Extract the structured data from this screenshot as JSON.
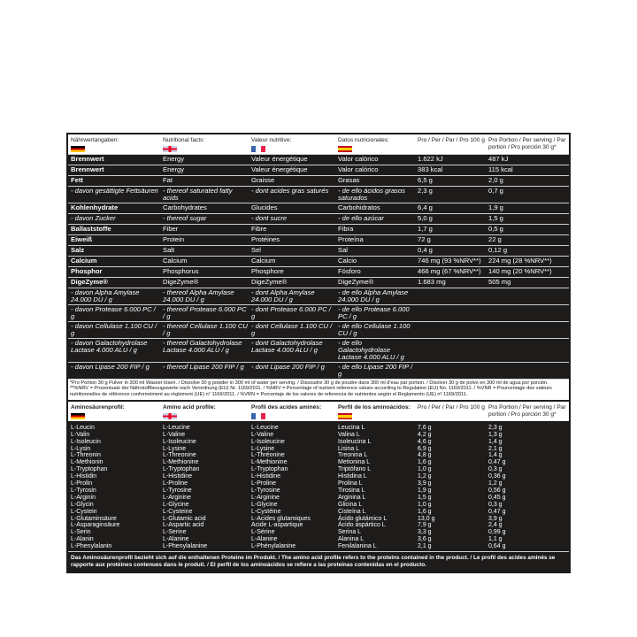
{
  "nutrition": {
    "headers": [
      "Nährwertangaben:",
      "Nutritional facts:",
      "Valeur nutritive:",
      "Datos nutricionales:",
      "Pro / Per / Par / Pro 100 g",
      "Pro Portion / Per serving / Par portion / Pro porción 30 g*"
    ],
    "flags": [
      "germany-flag",
      "uk-flag",
      "france-flag",
      "spain-flag"
    ],
    "rows": [
      {
        "style": "b",
        "cells": [
          "Brennwert",
          "Energy",
          "Valeur énergétique",
          "Valor calórico",
          "1.622 kJ",
          "487 kJ"
        ]
      },
      {
        "style": "b",
        "cells": [
          "Brennwert",
          "Energy",
          "Valeur énergétique",
          "Valor calórico",
          "383 kcal",
          "115 kcal"
        ]
      },
      {
        "style": "b",
        "cells": [
          "Fett",
          "Fat",
          "Graisse",
          "Grasas",
          "6,5 g",
          "2,0 g"
        ]
      },
      {
        "style": "i",
        "cells": [
          "- davon gesättigte Fettsäuren",
          "- thereof saturated fatty acids",
          "- dont acides gras saturés",
          "- de ello ácidos grasos saturados",
          "2,3 g",
          "0,7 g"
        ]
      },
      {
        "style": "b",
        "cells": [
          "Kohlenhydrate",
          "Carbohydrates",
          "Glucides",
          "Carbohidratos",
          "6,4 g",
          "1,9 g"
        ]
      },
      {
        "style": "i",
        "cells": [
          "- davon Zucker",
          "- thereof sugar",
          "- dont sucre",
          "- de ello azúcar",
          "5,0 g",
          "1,5 g"
        ]
      },
      {
        "style": "b",
        "cells": [
          "Ballaststoffe",
          "Fiber",
          "Fibre",
          "Fibra",
          "1,7 g",
          "0,5 g"
        ]
      },
      {
        "style": "b",
        "cells": [
          "Eiweiß",
          "Protein",
          "Protéines",
          "Proteína",
          "72 g",
          "22 g"
        ]
      },
      {
        "style": "b",
        "cells": [
          "Salz",
          "Salt",
          "Sel",
          "Sal",
          "0,4 g",
          "0,12 g"
        ]
      },
      {
        "style": "b",
        "cells": [
          "Calcium",
          "Calcium",
          "Calcium",
          "Calcio",
          "746 mg (93 %NRV**)",
          "224 mg (28 %NRV**)"
        ]
      },
      {
        "style": "b",
        "cells": [
          "Phosphor",
          "Phosphorus",
          "Phosphore",
          "Fósforo",
          "466 mg (67 %NRV**)",
          "140 mg (20 %NRV**)"
        ]
      },
      {
        "style": "b",
        "cells": [
          "DigeZyme®",
          "DigeZyme®",
          "DigeZyme®",
          "DigeZyme®",
          "1.683 mg",
          "505 mg"
        ]
      },
      {
        "style": "i",
        "cells": [
          "- davon Alpha Amylase 24.000 DU / g",
          "- thereof Alpha Amylase 24.000 DU / g",
          "- dont Alpha Amylase 24.000 DU / g",
          "- de ello Alpha Amylase 24.000 DU / g",
          "",
          ""
        ]
      },
      {
        "style": "i",
        "cells": [
          "- davon Protease 6.000 PC / g",
          "- thereof Protease 6.000 PC / g",
          "- dont Protease 6.000 PC / g",
          "- de ello Protease 6.000 PC / g",
          "",
          ""
        ]
      },
      {
        "style": "i",
        "cells": [
          "- davon Cellulase 1.100 CU / g",
          "- thereof Cellulase 1.100 CU / g",
          "- dont Cellulase 1.100 CU / g",
          "- de ello Cellulase 1.100 CU / g",
          "",
          ""
        ]
      },
      {
        "style": "i",
        "cells": [
          "- davon Galactohydrolase Lactase 4.000 ALU / g",
          "- thereof Galactohydrolase Lactase 4.000 ALU / g",
          "- dont Galactohydrolase Lactase 4.000 ALU / g",
          "- de ello Galactohydrolase Lactase 4.000 ALU / g",
          "",
          ""
        ]
      },
      {
        "style": "i",
        "cells": [
          "- davon Lipase 200 FIP / g",
          "- thereof Lipase 200 FIP / g",
          "- dont Lipase 200 FIP / g",
          "- de ello Lipase 200 FIP / g",
          "",
          ""
        ]
      }
    ],
    "footnote": "*Pro Portion 30 g Pulver in 300 ml Wasser lösen. / Dissolve 30 g powder in 300 ml of water per serving. / Dissoudre 30 g de poudre dans 300 ml d'eau par portion. / Disolver 30 g de polvo en 300 ml de agua por porción. **%NRV = Prozentsatz der Nährstoffbezugswerte nach Verordnung (EU) Nr. 1169/2011. / %NRV = Percentage of nutrient reference values according to Regulation (EU) No. 1169/2011. / %VNR = Pourcentage des valeurs nutritionnelles de référence conformément au règlement (UE) n° 1169/2011. / %VRN = Porcentaje de los valores de referencia de nutrientes según el Reglamento (UE) nº 1169/2011."
  },
  "amino": {
    "headers": [
      "Aminosäurenprofil:",
      "Amino acid profile:",
      "Profil des acides aminés:",
      "Perfil de los aminoácidos:",
      "Pro / Per / Par / Pro 100 g",
      "Pro Portion / Per serving / Par portion / Pro porción 30 g*"
    ],
    "rows": [
      [
        "L-Leucin",
        "L-Leucine",
        "L-Leucine",
        "Leucina L",
        "7,6 g",
        "2,3 g"
      ],
      [
        "L-Valin",
        "L-Valine",
        "L-Valine",
        "Valina L",
        "4,2 g",
        "1,3 g"
      ],
      [
        "L-Isoleucin",
        "L-Isoleucine",
        "L-Isoleucine",
        "Isoleucina L",
        "4,6 g",
        "1,4 g"
      ],
      [
        "L-Lysin",
        "L-Lysine",
        "L-Lysine",
        "Lisina L",
        "6,9 g",
        "2,1 g"
      ],
      [
        "L-Threonin",
        "L-Threonine",
        "L-Thréonine",
        "Treonina L",
        "4,8 g",
        "1,4 g"
      ],
      [
        "L-Methionin",
        "L-Methionine",
        "L-Methionine",
        "Metionina L",
        "1,6 g",
        "0,47 g"
      ],
      [
        "L-Tryptophan",
        "L-Tryptophan",
        "L-Tryptophan",
        "Triptófano L",
        "1,0 g",
        "0,3 g"
      ],
      [
        "L-Histidin",
        "L-Histidine",
        "L-Histidine",
        "Histidina L",
        "1,2 g",
        "0,36 g"
      ],
      [
        "L-Prolin",
        "L-Proline",
        "L-Proline",
        "Prolina L",
        "3,9 g",
        "1,2 g"
      ],
      [
        "L-Tyrosin",
        "L-Tyrosine",
        "L-Tyrosine",
        "Tirosina L",
        "1,9 g",
        "0,56 g"
      ],
      [
        "L-Arginin",
        "L-Arginine",
        "L-Arginine",
        "Arginina L",
        "1,5 g",
        "0,45 g"
      ],
      [
        "L-Glycin",
        "L-Glycine",
        "L-Glycine",
        "Glicina L",
        "1,0 g",
        "0,3 g"
      ],
      [
        "L-Cystein",
        "L-Cysteine",
        "L-Cystéine",
        "Cisteína L",
        "1,6 g",
        "0,47 g"
      ],
      [
        "L-Glutaminsäure",
        "L-Glutamic acid",
        "L-Acides glutamiques",
        "Ácido glutámico L",
        "13,0 g",
        "3,9 g"
      ],
      [
        "L-Asparaginsäure",
        "L-Aspartic acid",
        "Acide L-aspartique",
        "Ácido aspártico L",
        "7,9 g",
        "2,4 g"
      ],
      [
        "L-Serin",
        "L-Serine",
        "L-Sérine",
        "Serina L",
        "3,3 g",
        "0,99 g"
      ],
      [
        "L-Alanin",
        "L-Alanine",
        "L-Alanine",
        "Alanina L",
        "3,6 g",
        "1,1 g"
      ],
      [
        "L-Phenylalanin",
        "L-Phenylalanine",
        "L-Phénylalanine",
        "Fenilalanina L",
        "2,1 g",
        "0,64 g"
      ]
    ],
    "footnote": "Das Aminosäurenprofil bezieht sich auf die enthaltenen Proteine im Produkt. / The amino acid profile refers to the proteins contained in the product. / Le profil des acides aminés se rapporte aux protéines contenues dans le produit. / El perfil de los aminoácidos se refiere a las proteínas contenidas en el producto."
  },
  "colors": {
    "panel": "#1e1b1b",
    "text_on_panel": "#ffffff",
    "divider": "#cfcfcf"
  }
}
